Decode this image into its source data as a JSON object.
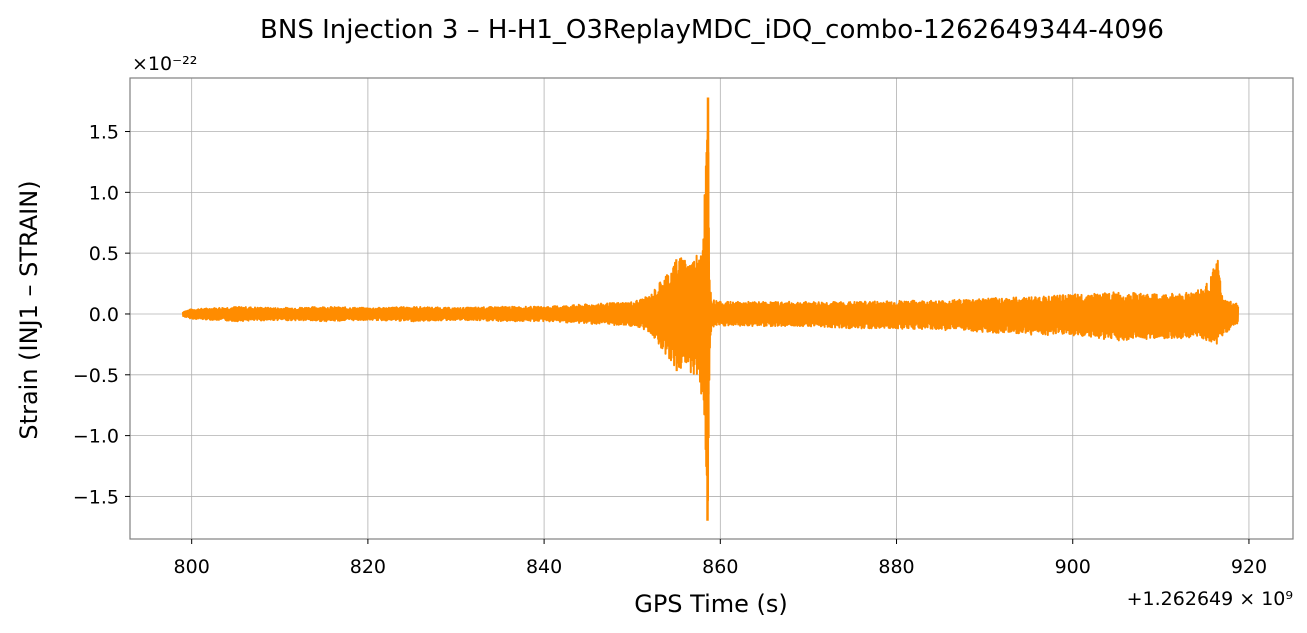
{
  "chart_data": {
    "type": "line",
    "title": "BNS Injection 3 – H-H1_O3ReplayMDC_iDQ_combo-1262649344-4096",
    "xlabel": "GPS Time (s)",
    "ylabel": "Strain (INJ1 – STRAIN)",
    "x_offset_label": "+1.262649 × 10⁹",
    "y_multiplier_label": "×10⁻²²",
    "x_offset_value": 1262649000,
    "y_scale": 1e-22,
    "xlim": [
      793,
      925
    ],
    "ylim": [
      -1.85,
      1.94
    ],
    "x_ticks": [
      800,
      820,
      840,
      860,
      880,
      900,
      920
    ],
    "x_tick_labels": [
      "800",
      "820",
      "840",
      "860",
      "880",
      "900",
      "920"
    ],
    "y_ticks": [
      -1.5,
      -1.0,
      -0.5,
      0.0,
      0.5,
      1.0,
      1.5
    ],
    "y_tick_labels": [
      "−1.5",
      "−1.0",
      "−0.5",
      "0.0",
      "0.5",
      "1.0",
      "1.5"
    ],
    "grid": true,
    "series": [
      {
        "color": "#ff8c00",
        "envelope": {
          "x": [
            799,
            800,
            805,
            810,
            815,
            820,
            825,
            830,
            835,
            840,
            845,
            850,
            852,
            853,
            854,
            855,
            856,
            857,
            858,
            858.6,
            858.8,
            859,
            860,
            865,
            870,
            875,
            880,
            885,
            890,
            895,
            900,
            905,
            910,
            913,
            915,
            916.5,
            917,
            918,
            918.8
          ],
          "upper": [
            0.02,
            0.04,
            0.06,
            0.05,
            0.06,
            0.05,
            0.06,
            0.05,
            0.06,
            0.06,
            0.08,
            0.1,
            0.15,
            0.25,
            0.35,
            0.45,
            0.48,
            0.45,
            0.65,
            1.78,
            0.3,
            0.12,
            0.1,
            0.1,
            0.1,
            0.1,
            0.11,
            0.11,
            0.13,
            0.14,
            0.16,
            0.18,
            0.16,
            0.18,
            0.22,
            0.45,
            0.12,
            0.1,
            0.08
          ],
          "lower": [
            -0.02,
            -0.04,
            -0.06,
            -0.05,
            -0.06,
            -0.05,
            -0.06,
            -0.05,
            -0.06,
            -0.06,
            -0.08,
            -0.1,
            -0.15,
            -0.25,
            -0.35,
            -0.47,
            -0.45,
            -0.5,
            -0.7,
            -1.7,
            -0.3,
            -0.12,
            -0.1,
            -0.1,
            -0.1,
            -0.12,
            -0.12,
            -0.13,
            -0.15,
            -0.17,
            -0.18,
            -0.22,
            -0.2,
            -0.2,
            -0.22,
            -0.25,
            -0.18,
            -0.12,
            -0.08
          ]
        }
      }
    ]
  }
}
